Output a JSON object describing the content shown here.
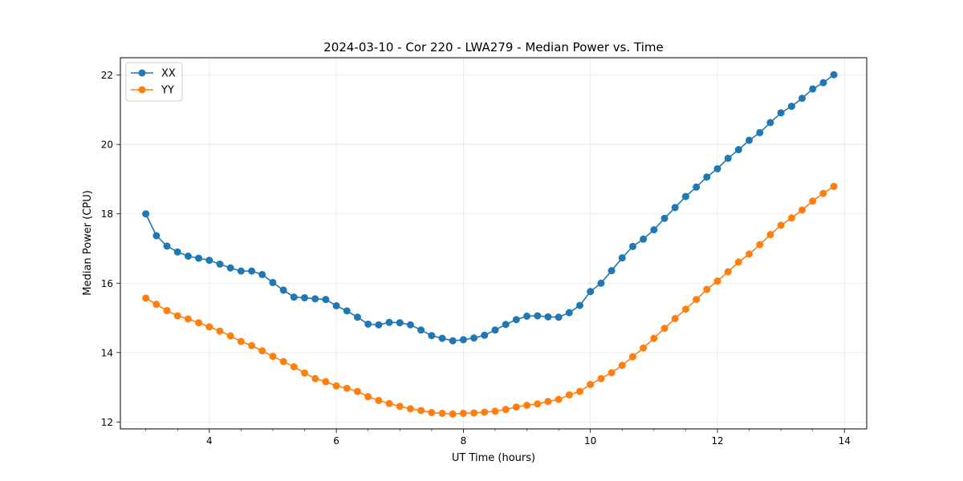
{
  "chart_data": {
    "type": "line",
    "title": "2024-03-10 - Cor 220 - LWA279 - Median Power vs. Time",
    "xlabel": "UT Time (hours)",
    "ylabel": "Median Power (CPU)",
    "xlim": [
      2.6,
      14.35
    ],
    "ylim": [
      11.8,
      22.5
    ],
    "xticks": [
      4,
      6,
      8,
      10,
      12,
      14
    ],
    "xtick_labels": [
      "4",
      "6",
      "8",
      "10",
      "12",
      "14"
    ],
    "yticks": [
      12,
      14,
      16,
      18,
      20,
      22
    ],
    "ytick_labels": [
      "12",
      "14",
      "16",
      "18",
      "20",
      "22"
    ],
    "grid": true,
    "legend_position": "top-left",
    "x": [
      3.0,
      3.167,
      3.333,
      3.5,
      3.667,
      3.833,
      4.0,
      4.167,
      4.333,
      4.5,
      4.667,
      4.833,
      5.0,
      5.167,
      5.333,
      5.5,
      5.667,
      5.833,
      6.0,
      6.167,
      6.333,
      6.5,
      6.667,
      6.833,
      7.0,
      7.167,
      7.333,
      7.5,
      7.667,
      7.833,
      8.0,
      8.167,
      8.333,
      8.5,
      8.667,
      8.833,
      9.0,
      9.167,
      9.333,
      9.5,
      9.667,
      9.833,
      10.0,
      10.167,
      10.333,
      10.5,
      10.667,
      10.833,
      11.0,
      11.167,
      11.333,
      11.5,
      11.667,
      11.833,
      12.0,
      12.167,
      12.333,
      12.5,
      12.667,
      12.833,
      13.0,
      13.167,
      13.333,
      13.5,
      13.667,
      13.833
    ],
    "series": [
      {
        "name": "XX",
        "color": "#1f77b4",
        "values": [
          18.0,
          17.37,
          17.07,
          16.9,
          16.78,
          16.72,
          16.66,
          16.55,
          16.44,
          16.35,
          16.35,
          16.25,
          16.02,
          15.8,
          15.6,
          15.58,
          15.55,
          15.53,
          15.35,
          15.2,
          15.02,
          14.82,
          14.8,
          14.87,
          14.86,
          14.8,
          14.65,
          14.49,
          14.41,
          14.34,
          14.37,
          14.42,
          14.5,
          14.65,
          14.81,
          14.95,
          15.05,
          15.06,
          15.03,
          15.02,
          15.15,
          15.36,
          15.76,
          16.0,
          16.36,
          16.73,
          17.06,
          17.27,
          17.54,
          17.87,
          18.18,
          18.5,
          18.77,
          19.06,
          19.3,
          19.6,
          19.85,
          20.12,
          20.34,
          20.63,
          20.91,
          21.1,
          21.33,
          21.6,
          21.78,
          22.01
        ]
      },
      {
        "name": "YY",
        "color": "#ff7f0e",
        "values": [
          15.57,
          15.39,
          15.21,
          15.06,
          14.97,
          14.86,
          14.74,
          14.62,
          14.48,
          14.32,
          14.2,
          14.05,
          13.89,
          13.74,
          13.59,
          13.41,
          13.25,
          13.16,
          13.04,
          12.97,
          12.88,
          12.73,
          12.62,
          12.53,
          12.45,
          12.38,
          12.33,
          12.27,
          12.25,
          12.23,
          12.25,
          12.26,
          12.28,
          12.31,
          12.36,
          12.43,
          12.48,
          12.52,
          12.59,
          12.65,
          12.78,
          12.88,
          13.08,
          13.25,
          13.42,
          13.63,
          13.88,
          14.13,
          14.41,
          14.7,
          14.98,
          15.25,
          15.53,
          15.82,
          16.06,
          16.33,
          16.61,
          16.84,
          17.11,
          17.4,
          17.67,
          17.88,
          18.11,
          18.37,
          18.59,
          18.79
        ]
      }
    ]
  }
}
